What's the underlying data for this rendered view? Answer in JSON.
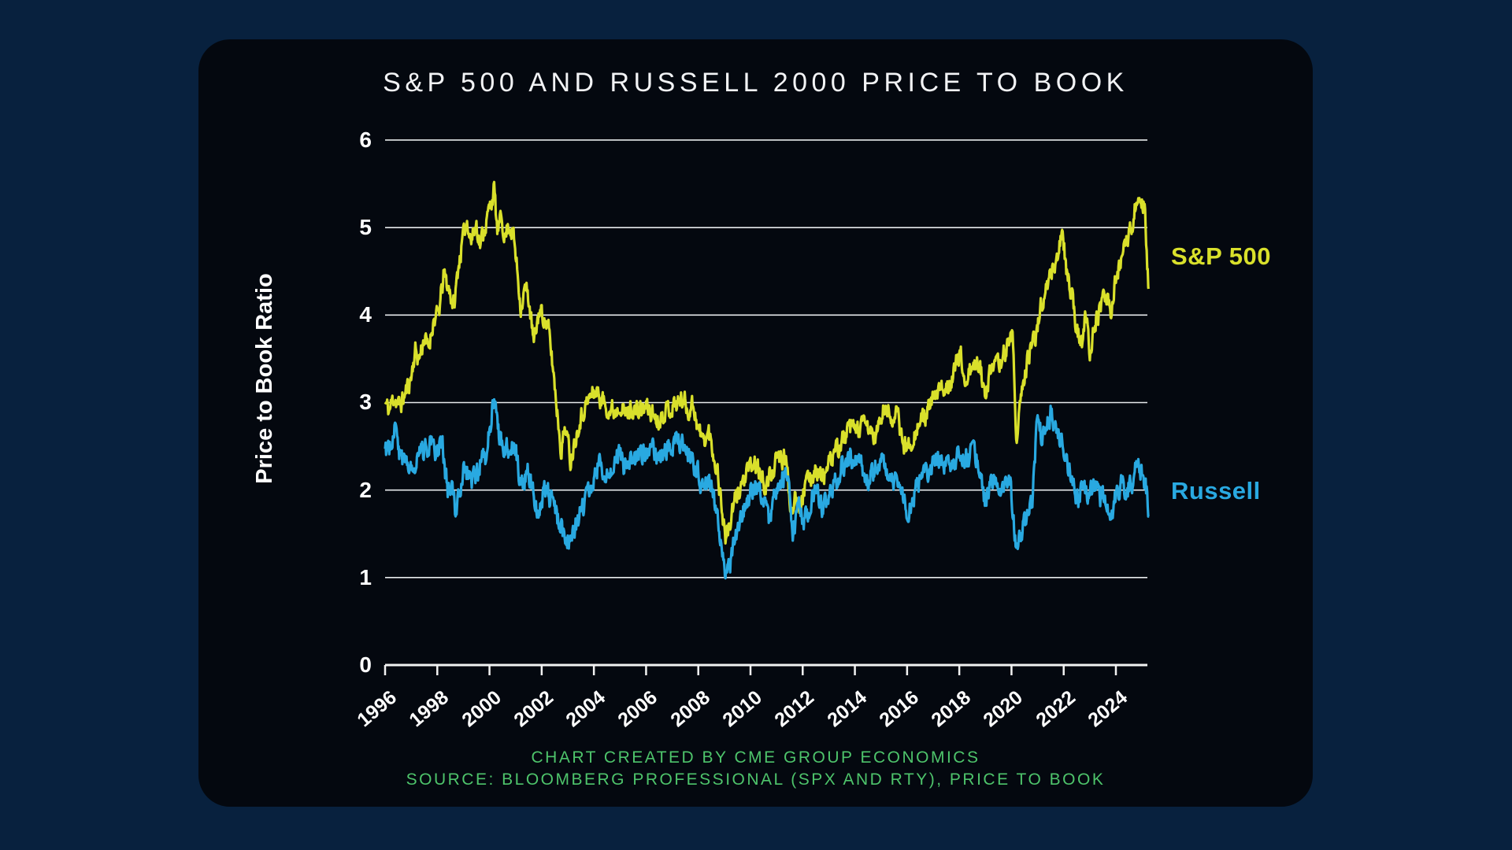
{
  "page": {
    "background_color": "#08213e",
    "card_background_color": "#04080f"
  },
  "chart": {
    "title": "S&P 500 AND RUSSELL 2000 PRICE TO BOOK",
    "y_axis_title": "Price to Book Ratio",
    "legend": {
      "sp500": "S&P 500",
      "russell": "Russell"
    }
  },
  "footer": {
    "credit": "CHART CREATED BY CME GROUP ECONOMICS",
    "source": "SOURCE: BLOOMBERG PROFESSIONAL (SPX AND RTY), PRICE TO BOOK"
  },
  "colors": {
    "sp500_line": "#d9e02b",
    "russell_line": "#29a9e1",
    "gridline": "#e7eaec",
    "axis": "#f2f2f2",
    "tick_text": "#ffffff",
    "title_text": "#f2f3f5",
    "footer_text": "#4ec46b"
  },
  "chart_data": {
    "type": "line",
    "title": "S&P 500 AND RUSSELL 2000 PRICE TO BOOK",
    "xlabel": "",
    "ylabel": "Price to Book Ratio",
    "xlim": [
      1996,
      2025.3
    ],
    "ylim": [
      0,
      6
    ],
    "y_ticks": [
      0,
      1,
      2,
      3,
      4,
      5,
      6
    ],
    "x_ticks": [
      1996,
      1998,
      2000,
      2002,
      2004,
      2006,
      2008,
      2010,
      2012,
      2014,
      2016,
      2018,
      2020,
      2022,
      2024
    ],
    "grid": "horizontal gridlines at y=1..6",
    "legend_position": "right of line ends",
    "series": [
      {
        "name": "S&P 500",
        "color": "#d9e02b",
        "points": [
          [
            1996.0,
            3.0
          ],
          [
            1996.15,
            2.9
          ],
          [
            1996.35,
            3.08
          ],
          [
            1996.55,
            2.95
          ],
          [
            1996.8,
            3.12
          ],
          [
            1997.0,
            3.3
          ],
          [
            1997.15,
            3.6
          ],
          [
            1997.3,
            3.5
          ],
          [
            1997.5,
            3.75
          ],
          [
            1997.65,
            3.6
          ],
          [
            1997.85,
            3.95
          ],
          [
            1998.05,
            4.0
          ],
          [
            1998.25,
            4.45
          ],
          [
            1998.45,
            4.3
          ],
          [
            1998.65,
            4.1
          ],
          [
            1998.8,
            4.55
          ],
          [
            1999.0,
            4.9
          ],
          [
            1999.15,
            5.1
          ],
          [
            1999.3,
            4.85
          ],
          [
            1999.5,
            5.05
          ],
          [
            1999.65,
            4.8
          ],
          [
            1999.8,
            5.0
          ],
          [
            2000.0,
            5.2
          ],
          [
            2000.17,
            5.45
          ],
          [
            2000.3,
            4.95
          ],
          [
            2000.45,
            5.1
          ],
          [
            2000.6,
            4.9
          ],
          [
            2000.75,
            5.05
          ],
          [
            2000.9,
            4.95
          ],
          [
            2001.05,
            4.55
          ],
          [
            2001.2,
            4.1
          ],
          [
            2001.35,
            4.3
          ],
          [
            2001.5,
            4.2
          ],
          [
            2001.7,
            3.65
          ],
          [
            2001.9,
            4.05
          ],
          [
            2002.05,
            4.0
          ],
          [
            2002.25,
            3.85
          ],
          [
            2002.45,
            3.35
          ],
          [
            2002.6,
            2.9
          ],
          [
            2002.75,
            2.45
          ],
          [
            2002.9,
            2.75
          ],
          [
            2003.1,
            2.35
          ],
          [
            2003.25,
            2.55
          ],
          [
            2003.45,
            2.8
          ],
          [
            2003.65,
            2.95
          ],
          [
            2003.85,
            3.05
          ],
          [
            2004.05,
            3.15
          ],
          [
            2004.25,
            3.05
          ],
          [
            2004.5,
            2.95
          ],
          [
            2004.75,
            2.9
          ],
          [
            2005.0,
            3.0
          ],
          [
            2005.2,
            2.85
          ],
          [
            2005.45,
            2.95
          ],
          [
            2005.7,
            2.88
          ],
          [
            2005.95,
            2.95
          ],
          [
            2006.2,
            2.9
          ],
          [
            2006.45,
            2.8
          ],
          [
            2006.7,
            2.9
          ],
          [
            2006.95,
            2.95
          ],
          [
            2007.2,
            3.0
          ],
          [
            2007.45,
            3.05
          ],
          [
            2007.6,
            2.9
          ],
          [
            2007.8,
            3.0
          ],
          [
            2008.0,
            2.7
          ],
          [
            2008.2,
            2.55
          ],
          [
            2008.4,
            2.65
          ],
          [
            2008.6,
            2.4
          ],
          [
            2008.75,
            2.2
          ],
          [
            2008.9,
            1.8
          ],
          [
            2009.05,
            1.45
          ],
          [
            2009.2,
            1.6
          ],
          [
            2009.4,
            1.85
          ],
          [
            2009.6,
            2.05
          ],
          [
            2009.8,
            2.15
          ],
          [
            2010.0,
            2.25
          ],
          [
            2010.2,
            2.3
          ],
          [
            2010.45,
            2.1
          ],
          [
            2010.6,
            2.05
          ],
          [
            2010.8,
            2.2
          ],
          [
            2011.05,
            2.35
          ],
          [
            2011.35,
            2.36
          ],
          [
            2011.55,
            1.77
          ],
          [
            2011.7,
            1.95
          ],
          [
            2011.9,
            1.85
          ],
          [
            2012.1,
            2.05
          ],
          [
            2012.3,
            2.15
          ],
          [
            2012.5,
            2.26
          ],
          [
            2012.7,
            2.15
          ],
          [
            2012.9,
            2.2
          ],
          [
            2013.2,
            2.41
          ],
          [
            2013.5,
            2.55
          ],
          [
            2013.8,
            2.68
          ],
          [
            2014.1,
            2.7
          ],
          [
            2014.4,
            2.74
          ],
          [
            2014.8,
            2.6
          ],
          [
            2015.1,
            2.92
          ],
          [
            2015.4,
            2.85
          ],
          [
            2015.65,
            2.83
          ],
          [
            2015.85,
            2.53
          ],
          [
            2016.05,
            2.49
          ],
          [
            2016.35,
            2.7
          ],
          [
            2016.65,
            2.83
          ],
          [
            2017.05,
            3.04
          ],
          [
            2017.35,
            3.15
          ],
          [
            2017.65,
            3.25
          ],
          [
            2017.9,
            3.45
          ],
          [
            2018.05,
            3.55
          ],
          [
            2018.2,
            3.25
          ],
          [
            2018.4,
            3.35
          ],
          [
            2018.6,
            3.4
          ],
          [
            2018.8,
            3.45
          ],
          [
            2018.95,
            3.1
          ],
          [
            2019.15,
            3.3
          ],
          [
            2019.4,
            3.4
          ],
          [
            2019.6,
            3.5
          ],
          [
            2019.85,
            3.65
          ],
          [
            2020.05,
            3.8
          ],
          [
            2020.2,
            2.5
          ],
          [
            2020.35,
            3.0
          ],
          [
            2020.55,
            3.4
          ],
          [
            2020.75,
            3.6
          ],
          [
            2020.95,
            3.8
          ],
          [
            2021.15,
            4.15
          ],
          [
            2021.35,
            4.3
          ],
          [
            2021.55,
            4.5
          ],
          [
            2021.75,
            4.65
          ],
          [
            2021.95,
            4.95
          ],
          [
            2022.1,
            4.55
          ],
          [
            2022.3,
            4.25
          ],
          [
            2022.5,
            3.85
          ],
          [
            2022.7,
            3.65
          ],
          [
            2022.85,
            4.0
          ],
          [
            2023.0,
            3.6
          ],
          [
            2023.2,
            3.9
          ],
          [
            2023.4,
            4.05
          ],
          [
            2023.6,
            4.25
          ],
          [
            2023.8,
            4.05
          ],
          [
            2024.0,
            4.4
          ],
          [
            2024.2,
            4.6
          ],
          [
            2024.4,
            4.8
          ],
          [
            2024.6,
            5.0
          ],
          [
            2024.8,
            5.35
          ],
          [
            2024.95,
            5.15
          ],
          [
            2025.1,
            5.3
          ],
          [
            2025.25,
            4.3
          ]
        ]
      },
      {
        "name": "Russell",
        "color": "#29a9e1",
        "points": [
          [
            1996.0,
            2.44
          ],
          [
            1996.2,
            2.55
          ],
          [
            1996.4,
            2.69
          ],
          [
            1996.6,
            2.35
          ],
          [
            1996.8,
            2.26
          ],
          [
            1997.0,
            2.35
          ],
          [
            1997.2,
            2.3
          ],
          [
            1997.45,
            2.45
          ],
          [
            1997.75,
            2.54
          ],
          [
            1998.0,
            2.4
          ],
          [
            1998.2,
            2.55
          ],
          [
            1998.4,
            1.96
          ],
          [
            1998.55,
            2.1
          ],
          [
            1998.7,
            1.77
          ],
          [
            1999.05,
            2.26
          ],
          [
            1999.3,
            2.1
          ],
          [
            1999.6,
            2.25
          ],
          [
            1999.9,
            2.45
          ],
          [
            2000.17,
            3.08
          ],
          [
            2000.4,
            2.55
          ],
          [
            2000.65,
            2.47
          ],
          [
            2000.95,
            2.56
          ],
          [
            2001.2,
            2.06
          ],
          [
            2001.5,
            2.2
          ],
          [
            2001.85,
            1.77
          ],
          [
            2002.15,
            2.04
          ],
          [
            2002.4,
            1.85
          ],
          [
            2002.6,
            1.66
          ],
          [
            2002.9,
            1.45
          ],
          [
            2003.1,
            1.38
          ],
          [
            2003.4,
            1.65
          ],
          [
            2003.7,
            1.9
          ],
          [
            2004.0,
            2.15
          ],
          [
            2004.2,
            2.3
          ],
          [
            2004.45,
            2.2
          ],
          [
            2004.7,
            2.3
          ],
          [
            2004.95,
            2.4
          ],
          [
            2005.2,
            2.25
          ],
          [
            2005.45,
            2.4
          ],
          [
            2005.7,
            2.35
          ],
          [
            2005.95,
            2.45
          ],
          [
            2006.2,
            2.55
          ],
          [
            2006.45,
            2.35
          ],
          [
            2006.7,
            2.45
          ],
          [
            2006.95,
            2.5
          ],
          [
            2007.2,
            2.55
          ],
          [
            2007.45,
            2.5
          ],
          [
            2007.7,
            2.35
          ],
          [
            2007.95,
            2.25
          ],
          [
            2008.15,
            2.0
          ],
          [
            2008.35,
            2.1
          ],
          [
            2008.55,
            2.0
          ],
          [
            2008.75,
            1.7
          ],
          [
            2008.9,
            1.35
          ],
          [
            2009.1,
            1.0
          ],
          [
            2009.3,
            1.3
          ],
          [
            2009.5,
            1.55
          ],
          [
            2009.7,
            1.75
          ],
          [
            2009.9,
            1.9
          ],
          [
            2010.2,
            2.05
          ],
          [
            2010.45,
            1.9
          ],
          [
            2010.7,
            1.66
          ],
          [
            2010.95,
            2.0
          ],
          [
            2011.2,
            2.17
          ],
          [
            2011.45,
            2.1
          ],
          [
            2011.6,
            1.43
          ],
          [
            2011.85,
            1.81
          ],
          [
            2012.05,
            1.63
          ],
          [
            2012.3,
            1.85
          ],
          [
            2012.5,
            2.02
          ],
          [
            2012.75,
            1.77
          ],
          [
            2013.0,
            1.95
          ],
          [
            2013.5,
            2.26
          ],
          [
            2014.05,
            2.42
          ],
          [
            2014.5,
            2.09
          ],
          [
            2014.9,
            2.33
          ],
          [
            2015.3,
            2.23
          ],
          [
            2015.75,
            1.96
          ],
          [
            2016.05,
            1.75
          ],
          [
            2016.35,
            2.0
          ],
          [
            2016.65,
            2.17
          ],
          [
            2017.2,
            2.32
          ],
          [
            2017.5,
            2.25
          ],
          [
            2017.8,
            2.35
          ],
          [
            2018.1,
            2.4
          ],
          [
            2018.3,
            2.35
          ],
          [
            2018.55,
            2.45
          ],
          [
            2018.75,
            2.3
          ],
          [
            2018.95,
            1.85
          ],
          [
            2019.2,
            2.05
          ],
          [
            2019.45,
            2.1
          ],
          [
            2019.7,
            2.0
          ],
          [
            2019.95,
            2.1
          ],
          [
            2020.2,
            1.28
          ],
          [
            2020.4,
            1.55
          ],
          [
            2020.6,
            1.7
          ],
          [
            2020.8,
            1.9
          ],
          [
            2021.0,
            2.85
          ],
          [
            2021.15,
            2.6
          ],
          [
            2021.3,
            2.7
          ],
          [
            2021.5,
            2.85
          ],
          [
            2021.7,
            2.65
          ],
          [
            2021.9,
            2.6
          ],
          [
            2022.1,
            2.3
          ],
          [
            2022.3,
            2.15
          ],
          [
            2022.55,
            1.85
          ],
          [
            2022.75,
            2.05
          ],
          [
            2022.95,
            1.95
          ],
          [
            2023.15,
            2.05
          ],
          [
            2023.4,
            1.9
          ],
          [
            2023.6,
            1.95
          ],
          [
            2023.8,
            1.7
          ],
          [
            2024.0,
            1.95
          ],
          [
            2024.2,
            2.05
          ],
          [
            2024.45,
            2.0
          ],
          [
            2024.65,
            2.1
          ],
          [
            2024.85,
            2.3
          ],
          [
            2025.0,
            2.2
          ],
          [
            2025.15,
            2.1
          ],
          [
            2025.25,
            1.7
          ]
        ]
      }
    ]
  }
}
